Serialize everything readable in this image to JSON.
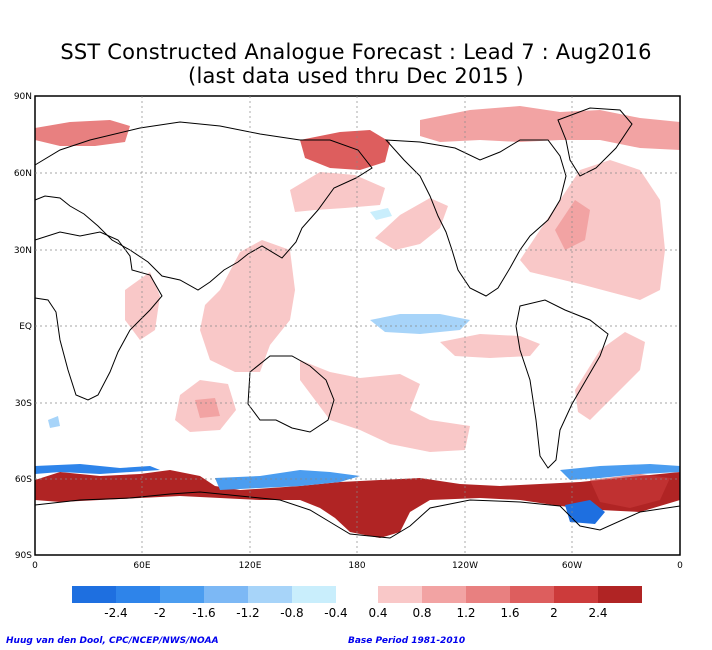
{
  "title": {
    "line1": "SST Constructed Analogue Forecast : Lead 7 : Aug2016",
    "line2": "(last data used thru Dec 2015 )"
  },
  "axes": {
    "lat_labels": [
      "90N",
      "60N",
      "30N",
      "EQ",
      "30S",
      "60S",
      "90S"
    ],
    "lon_labels": [
      "0",
      "60E",
      "120E",
      "180",
      "120W",
      "60W",
      "0"
    ]
  },
  "colorbar": {
    "negative_labels": [
      "-2.4",
      "-2",
      "-1.6",
      "-1.2",
      "-0.8",
      "-0.4"
    ],
    "positive_labels": [
      "0.4",
      "0.8",
      "1.2",
      "1.6",
      "2",
      "2.4"
    ],
    "negative_colors": [
      "#1e6fe0",
      "#2e84ea",
      "#4b9df0",
      "#7cb8f5",
      "#a7d4f9",
      "#c9eefc"
    ],
    "positive_colors": [
      "#f9c8c8",
      "#f2a3a3",
      "#e88080",
      "#dd5e5e",
      "#cc3b3b",
      "#b02424"
    ]
  },
  "credits": {
    "left": "Huug van den Dool, CPC/NCEP/NWS/NOAA",
    "right": "Base Period 1981-2010"
  }
}
